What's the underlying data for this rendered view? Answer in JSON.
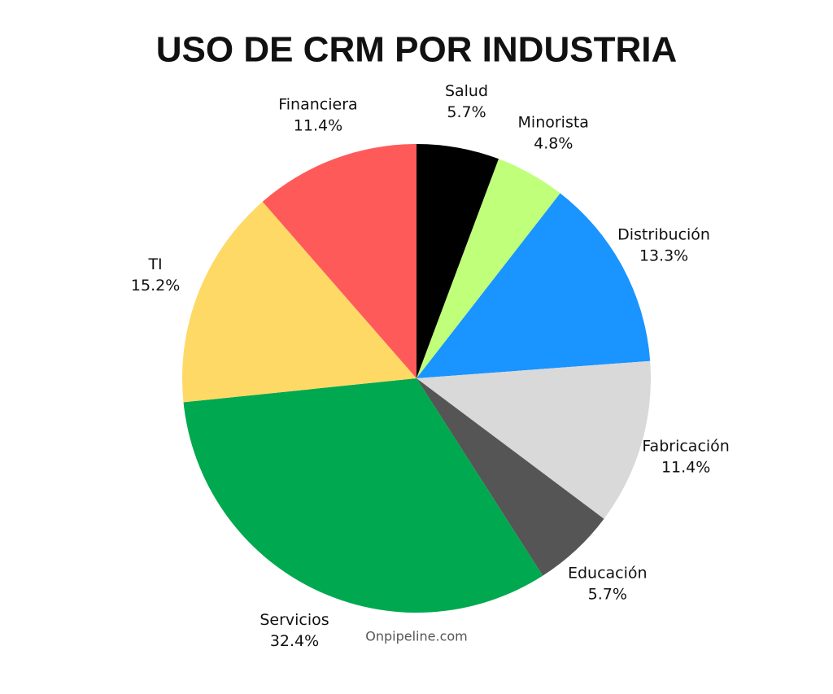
{
  "chart_data": {
    "type": "pie",
    "title": "USO DE CRM POR INDUSTRIA",
    "categories": [
      "Salud",
      "Minorista",
      "Distribución",
      "Fabricación",
      "Educación",
      "Servicios",
      "TI",
      "Financiera"
    ],
    "values": [
      5.7,
      4.8,
      13.3,
      11.4,
      5.7,
      32.4,
      15.2,
      11.4
    ],
    "value_labels": [
      "5.7%",
      "4.8%",
      "13.3%",
      "11.4%",
      "5.7%",
      "32.4%",
      "15.2%",
      "11.4%"
    ],
    "colors": [
      "#000000",
      "#bfff7a",
      "#1a94ff",
      "#d9d9d9",
      "#555555",
      "#00a84f",
      "#ffd966",
      "#ff5a5a"
    ],
    "source": "Onpipeline.com"
  }
}
